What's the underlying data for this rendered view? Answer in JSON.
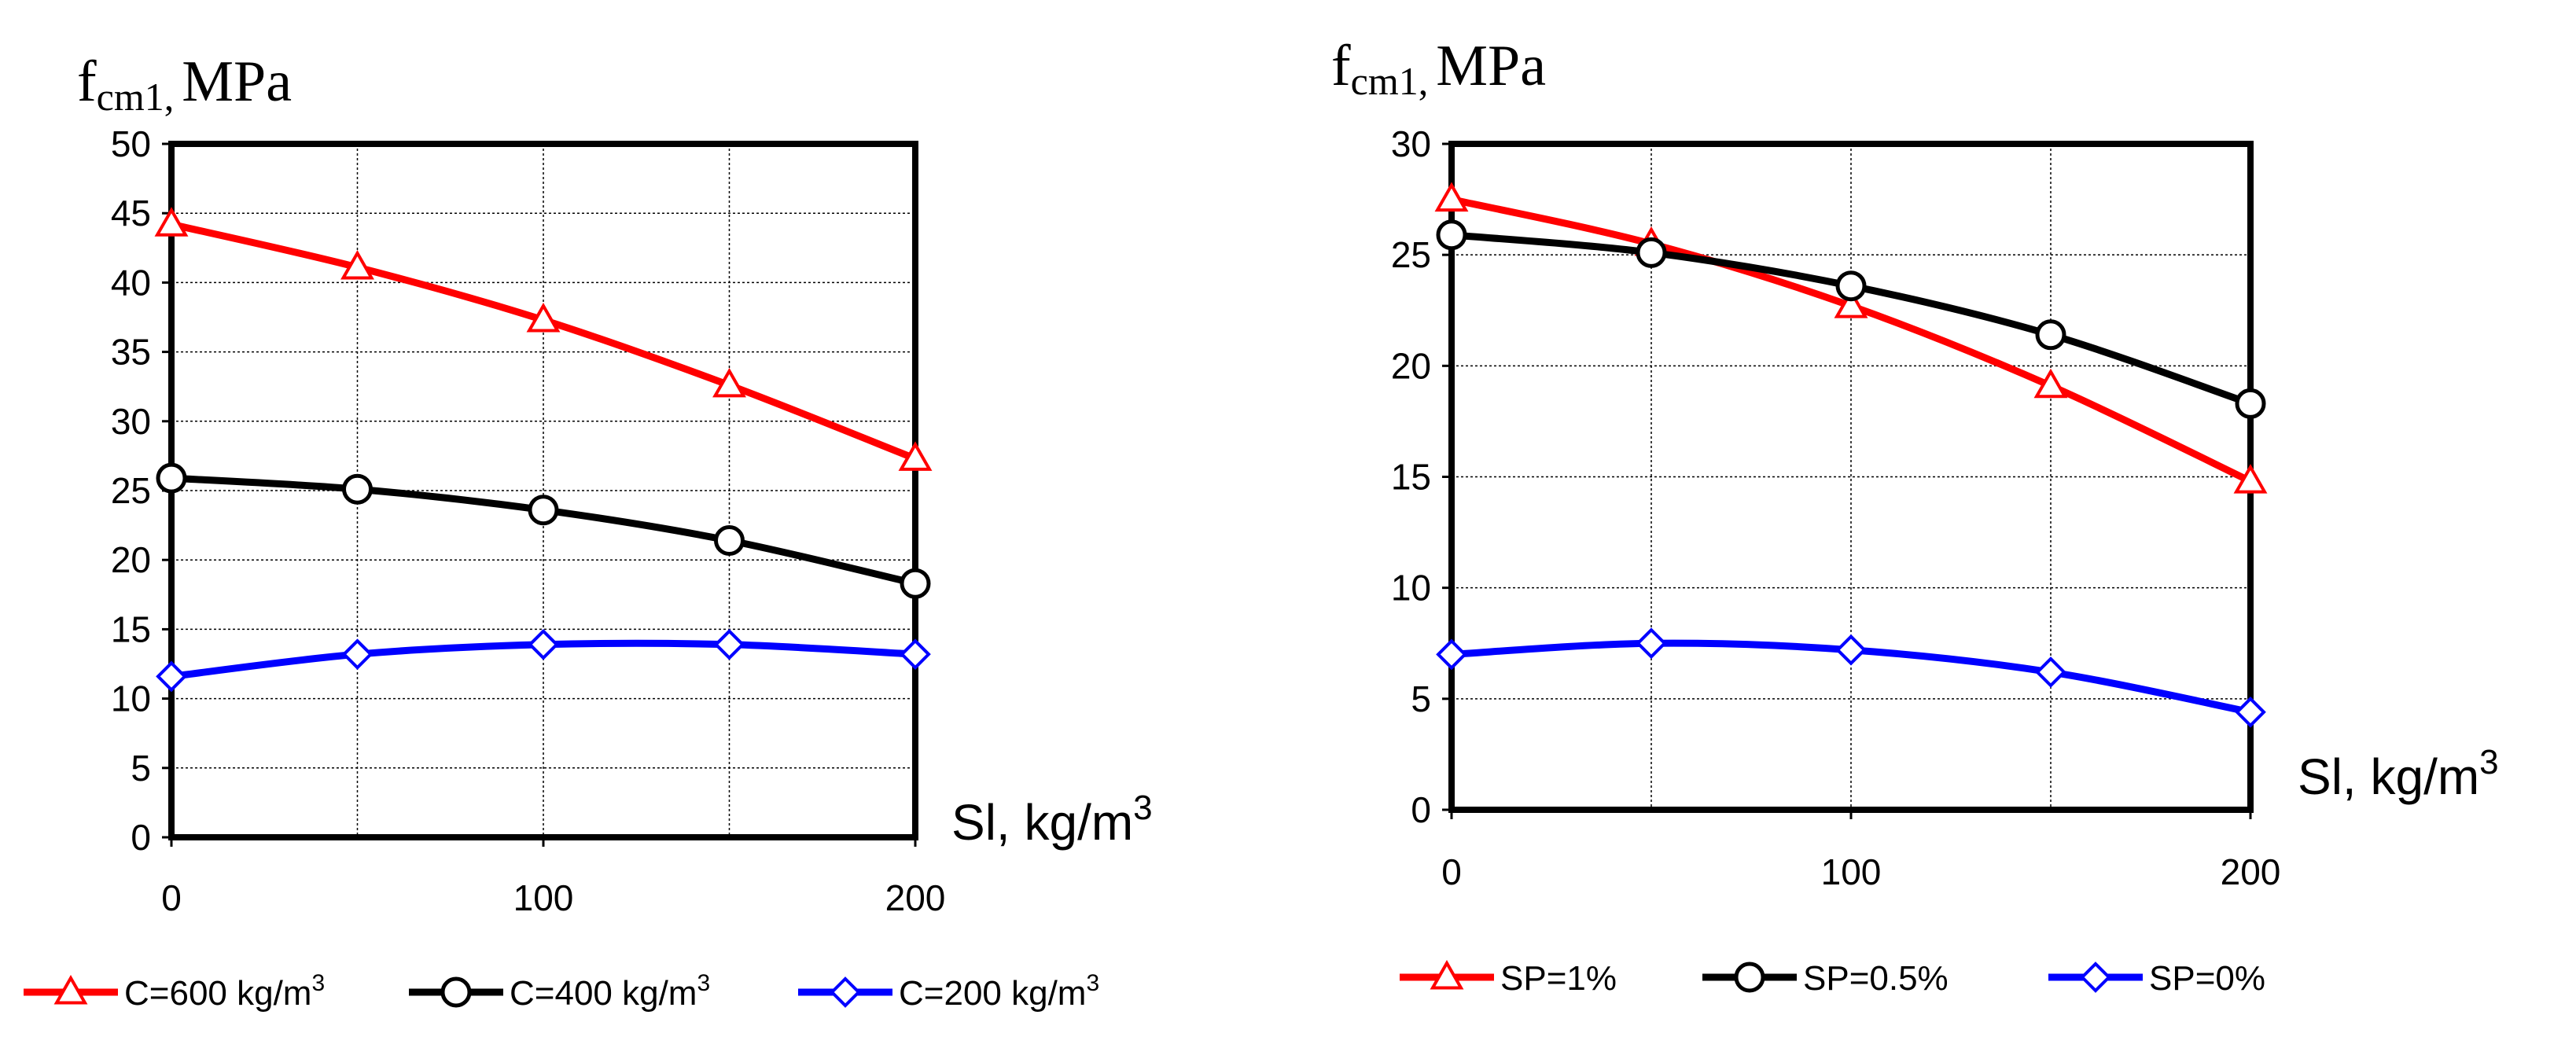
{
  "chart_data": [
    {
      "type": "line",
      "title": "",
      "ylabel_main": "f",
      "ylabel_sub": "cm1,",
      "ylabel_unit": "MPa",
      "xlabel": "Sl, kg/m",
      "xlabel_sup": "3",
      "x": [
        0,
        50,
        100,
        150,
        200
      ],
      "xlim": [
        0,
        200
      ],
      "ylim": [
        0,
        50
      ],
      "xticks": [
        0,
        100,
        200
      ],
      "xtick_labels": [
        "0",
        "100",
        "200"
      ],
      "yticks": [
        0,
        5,
        10,
        15,
        20,
        25,
        30,
        35,
        40,
        45,
        50
      ],
      "ytick_labels": [
        "0",
        "5",
        "10",
        "15",
        "20",
        "25",
        "30",
        "35",
        "40",
        "45",
        "50"
      ],
      "grid": true,
      "legend_position": "bottom",
      "series": [
        {
          "name": "C=600 kg/m",
          "name_sup": "3",
          "color": "#ff0000",
          "marker": "triangle",
          "values": [
            44.2,
            41.1,
            37.3,
            32.6,
            27.3
          ]
        },
        {
          "name": "C=400 kg/m",
          "name_sup": "3",
          "color": "#000000",
          "marker": "circle",
          "values": [
            25.9,
            25.1,
            23.6,
            21.4,
            18.3
          ]
        },
        {
          "name": "C=200 kg/m",
          "name_sup": "3",
          "color": "#0000ff",
          "marker": "diamond",
          "values": [
            11.6,
            13.2,
            13.9,
            13.9,
            13.2
          ]
        }
      ]
    },
    {
      "type": "line",
      "title": "",
      "ylabel_main": "f",
      "ylabel_sub": "cm1,",
      "ylabel_unit": "MPa",
      "xlabel": "Sl, kg/m",
      "xlabel_sup": "3",
      "x": [
        0,
        50,
        100,
        150,
        200
      ],
      "xlim": [
        0,
        200
      ],
      "ylim": [
        0,
        30
      ],
      "xticks": [
        0,
        100,
        200
      ],
      "xtick_labels": [
        "0",
        "100",
        "200"
      ],
      "yticks": [
        0,
        5,
        10,
        15,
        20,
        25,
        30
      ],
      "ytick_labels": [
        "0",
        "5",
        "10",
        "15",
        "20",
        "25",
        "30"
      ],
      "grid": true,
      "legend_position": "bottom",
      "series": [
        {
          "name": "SP=1%",
          "name_sup": "",
          "color": "#ff0000",
          "marker": "triangle",
          "values": [
            27.5,
            25.5,
            22.7,
            19.1,
            14.8
          ]
        },
        {
          "name": "SP=0.5%",
          "name_sup": "",
          "color": "#000000",
          "marker": "circle",
          "values": [
            25.9,
            25.1,
            23.6,
            21.4,
            18.3
          ]
        },
        {
          "name": "SP=0%",
          "name_sup": "",
          "color": "#0000ff",
          "marker": "diamond",
          "values": [
            7.0,
            7.5,
            7.2,
            6.2,
            4.4
          ]
        }
      ]
    }
  ]
}
